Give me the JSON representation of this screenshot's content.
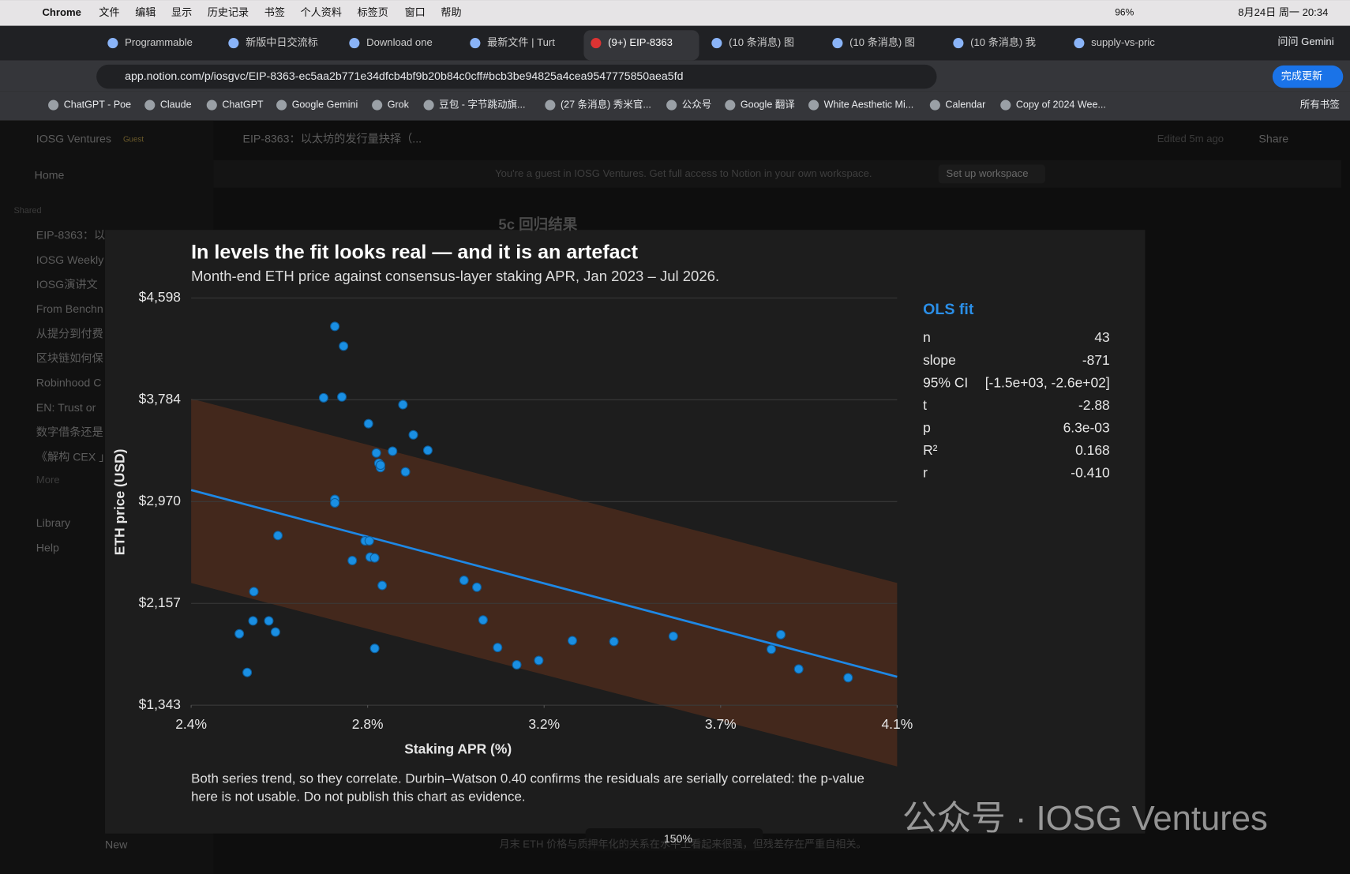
{
  "ui": {
    "menu": [
      "Chrome",
      "文件",
      "编辑",
      "显示",
      "历史记录",
      "书签",
      "个人资料",
      "标签页",
      "窗口",
      "帮助"
    ],
    "battery": "96%",
    "clock": "8月24日 周一 20:34",
    "tabs": [
      "Programmable",
      "新版中日交流标",
      "Download one",
      "最新文件 | Turt",
      "(9+) EIP-8363",
      "(10 条消息) 图",
      "(10 条消息) 图",
      "(10 条消息) 我",
      "supply-vs-pric"
    ],
    "gemini": "问问 Gemini",
    "url": "app.notion.com/p/iosgvc/EIP-8363-ec5aa2b771e34dfcb4bf9b20b84c0cff#bcb3be94825a4cea9547775850aea5fd",
    "update": "完成更新",
    "bookmarks": [
      "ChatGPT - Poe",
      "Claude",
      "ChatGPT",
      "Google Gemini",
      "Grok",
      "豆包 - 字节跳动旗...",
      "(27 条消息) 秀米官...",
      "公众号",
      "Google 翻译",
      "White Aesthetic Mi...",
      "Calendar",
      "Copy of 2024 Wee..."
    ],
    "all_bookmarks": "所有书签",
    "workspace": "IOSG Ventures",
    "guest": "Guest",
    "home": "Home",
    "shared": "Shared",
    "pages": [
      "EIP-8363：以",
      "IOSG Weekly",
      "IOSG演讲文​",
      "From Benchn",
      "从提分到付费",
      "区块链如何保",
      "Robinhood C",
      "EN: Trust or",
      "数字借条还是",
      "《解构 CEX 」"
    ],
    "more": "More",
    "library": "Library",
    "help": "Help",
    "new": "New",
    "breadcrumb": "EIP-8363：以太坊的发行量抉择（...",
    "edited": "Edited 5m ago",
    "share": "Share",
    "banner": "You're a guest in IOSG Ventures. Get full access to Notion in your own workspace.",
    "setup": "Set up workspace",
    "heading_behind": "5c 回归结果",
    "caption_behind": "月末 ETH 价格与质押年化的关系在水平上看起来很强，但残差存在严重自相关。",
    "zoom": "150%",
    "watermark": "公众号 · IOSG Ventures"
  },
  "chart_data": {
    "type": "scatter",
    "title": "In levels the fit looks real — and it is an artefact",
    "subtitle": "Month-end ETH price against consensus-layer staking APR, Jan 2023 – Jul 2026.",
    "xlabel": "Staking APR (%)",
    "ylabel": "ETH price (USD)",
    "xlim": [
      2.4,
      4.1
    ],
    "xticks": [
      {
        "value": 2.4,
        "label": "2.4%"
      },
      {
        "value": 2.825,
        "label": "2.8%"
      },
      {
        "value": 3.25,
        "label": "3.2%"
      },
      {
        "value": 3.675,
        "label": "3.7%"
      },
      {
        "value": 4.1,
        "label": "4.1%"
      }
    ],
    "ylim": [
      1343,
      4598
    ],
    "yticks": [
      {
        "value": 1343,
        "label": "$1,343"
      },
      {
        "value": 2156.75,
        "label": "$2,157"
      },
      {
        "value": 2970.5,
        "label": "$2,970"
      },
      {
        "value": 3784.25,
        "label": "$3,784"
      },
      {
        "value": 4598,
        "label": "$4,598"
      }
    ],
    "grid": true,
    "series": [
      {
        "name": "Month-end",
        "color": "#1a8fe3",
        "x": [
          2.746,
          2.767,
          2.719,
          2.763,
          2.91,
          2.827,
          2.935,
          2.97,
          2.846,
          2.885,
          2.852,
          2.856,
          2.916,
          2.746,
          2.746,
          2.609,
          2.819,
          2.829,
          2.788,
          2.831,
          2.842,
          2.86,
          2.551,
          3.057,
          3.088,
          2.549,
          2.587,
          2.516,
          2.603,
          3.103,
          2.842,
          2.535,
          3.138,
          3.184,
          3.237,
          3.318,
          3.418,
          3.561,
          3.82,
          3.797,
          3.863,
          3.982,
          2.856
        ],
        "values": [
          4371,
          4213,
          3800,
          3807,
          3745,
          3593,
          3504,
          3380,
          3359,
          3373,
          3277,
          3242,
          3208,
          2988,
          2960,
          2699,
          2657,
          2657,
          2499,
          2527,
          2520,
          2300,
          2251,
          2341,
          2286,
          2017,
          2017,
          1914,
          1928,
          2024,
          1797,
          1605,
          1804,
          1666,
          1701,
          1859,
          1852,
          1894,
          1907,
          1790,
          1632,
          1563,
          3262
        ]
      }
    ],
    "fit": {
      "color": "#1e88e5",
      "band_color": "#4a2a1c",
      "x": [
        2.4,
        4.1
      ],
      "y": [
        3063,
        1570
      ],
      "upper": [
        3793,
        2320
      ],
      "lower": [
        2320,
        854
      ]
    },
    "stats_title": "OLS fit",
    "stats": [
      [
        "n",
        "43"
      ],
      [
        "slope",
        "-871"
      ],
      [
        "95% CI",
        "[-1.5e+03, -2.6e+02]"
      ],
      [
        "t",
        "-2.88"
      ],
      [
        "p",
        "6.3e-03"
      ],
      [
        "R²",
        "0.168"
      ],
      [
        "r",
        "-0.410"
      ]
    ],
    "footnote": [
      "Both series trend, so they correlate. Durbin–Watson 0.40 confirms the residuals are serially correlated: the p-value",
      "here is not usable. Do not publish this chart as evidence."
    ]
  }
}
